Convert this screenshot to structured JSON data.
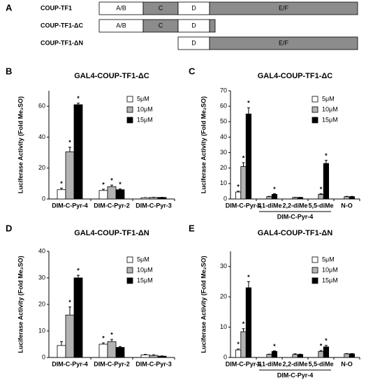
{
  "panel_a": {
    "panel": "A",
    "rows": [
      {
        "label": "COUP-TF1",
        "domains": [
          "A/B",
          "C",
          "D",
          "E/F"
        ]
      },
      {
        "label": "COUP-TF1-ΔC",
        "domains": [
          "A/B",
          "C",
          "D"
        ]
      },
      {
        "label": "COUP-TF1-ΔN",
        "domains": [
          "D",
          "E/F"
        ]
      }
    ]
  },
  "chart_data": [
    {
      "type": "bar",
      "panel": "B",
      "title": "GAL4-COUP-TF1-ΔC",
      "y_label": "Luciferase Activity (Fold Me₂SO)",
      "categories": [
        "DIM-C-Pyr-4",
        "DIM-C-Pyr-2",
        "DIM-C-Pyr-3"
      ],
      "star": "*",
      "series": [
        {
          "name": "5μM",
          "color": "#ffffff",
          "values": [
            6,
            5.5,
            0.8
          ],
          "errors": [
            1,
            0.8,
            0.1
          ],
          "marked": [
            true,
            true,
            false
          ]
        },
        {
          "name": "10μM",
          "color": "#b3b3b3",
          "values": [
            30.5,
            8,
            1
          ],
          "errors": [
            3,
            1,
            0.1
          ],
          "marked": [
            true,
            true,
            false
          ]
        },
        {
          "name": "15μM",
          "color": "#000000",
          "values": [
            61,
            6,
            1
          ],
          "errors": [
            1,
            0.5,
            0.1
          ],
          "marked": [
            true,
            true,
            false
          ]
        }
      ],
      "ylim": [
        0,
        70
      ],
      "yticks": [
        0,
        20,
        40,
        60
      ]
    },
    {
      "type": "bar",
      "panel": "C",
      "title": "GAL4-COUP-TF1-ΔC",
      "y_label": "Luciferase Activity (Fold Me₂SO)",
      "categories": [
        "DIM-C-Pyr-4",
        "1,1-diMe",
        "2,2-diMe",
        "5,5-diMe",
        "N-O"
      ],
      "group": {
        "label": "DIM-C-Pyr-4",
        "from": 1,
        "to": 3
      },
      "star": "*",
      "series": [
        {
          "name": "5μM",
          "color": "#ffffff",
          "values": [
            4.5,
            null,
            null,
            null,
            null
          ],
          "errors": [
            0.5,
            null,
            null,
            null,
            null
          ],
          "marked": [
            true,
            false,
            false,
            false,
            false
          ]
        },
        {
          "name": "10μM",
          "color": "#b3b3b3",
          "values": [
            21,
            1.5,
            1,
            3,
            1.5
          ],
          "errors": [
            2.5,
            0.2,
            0.1,
            0.4,
            0.2
          ],
          "marked": [
            true,
            false,
            false,
            true,
            false
          ]
        },
        {
          "name": "15μM",
          "color": "#000000",
          "values": [
            55,
            3,
            1,
            23,
            1.5
          ],
          "errors": [
            4,
            0.4,
            0.1,
            2,
            0.2
          ],
          "marked": [
            true,
            true,
            false,
            true,
            false
          ]
        }
      ],
      "ylim": [
        0,
        70
      ],
      "yticks": [
        0,
        10,
        20,
        30,
        40,
        50,
        60,
        70
      ]
    },
    {
      "type": "bar",
      "panel": "D",
      "title": "GAL4-COUP-TF1-ΔN",
      "y_label": "Luciferase Activity (Fold Me₂SO)",
      "categories": [
        "DIM-C-Pyr-4",
        "DIM-C-Pyr-2",
        "DIM-C-Pyr-3"
      ],
      "star": "*",
      "series": [
        {
          "name": "5μM",
          "color": "#ffffff",
          "values": [
            4.5,
            5,
            1
          ],
          "errors": [
            1.5,
            0.5,
            0.2
          ],
          "marked": [
            false,
            true,
            false
          ]
        },
        {
          "name": "10μM",
          "color": "#b3b3b3",
          "values": [
            16,
            6,
            0.8
          ],
          "errors": [
            3,
            0.8,
            0.2
          ],
          "marked": [
            true,
            true,
            false
          ]
        },
        {
          "name": "15μM",
          "color": "#000000",
          "values": [
            30,
            3.8,
            0.5
          ],
          "errors": [
            1,
            0.3,
            0.1
          ],
          "marked": [
            true,
            false,
            false
          ]
        }
      ],
      "ylim": [
        0,
        40
      ],
      "yticks": [
        0,
        10,
        20,
        30,
        40
      ]
    },
    {
      "type": "bar",
      "panel": "E",
      "title": "GAL4-COUP-TF1-ΔN",
      "y_label": "Luciferase Activity (Fold Me₂SO)",
      "categories": [
        "DIM-C-Pyr-4",
        "1,1-diMe",
        "2,2-diMe",
        "5,5-diMe",
        "N-O"
      ],
      "group": {
        "label": "DIM-C-Pyr-4",
        "from": 1,
        "to": 3
      },
      "star": "*",
      "series": [
        {
          "name": "5μM",
          "color": "#ffffff",
          "values": [
            2.5,
            null,
            null,
            null,
            null
          ],
          "errors": [
            0.3,
            null,
            null,
            null,
            null
          ],
          "marked": [
            true,
            false,
            false,
            false,
            false
          ]
        },
        {
          "name": "10μM",
          "color": "#b3b3b3",
          "values": [
            8.5,
            1,
            1,
            2,
            1.2
          ],
          "errors": [
            1,
            0.1,
            0.2,
            0.3,
            0.1
          ],
          "marked": [
            true,
            false,
            false,
            true,
            false
          ]
        },
        {
          "name": "15μM",
          "color": "#000000",
          "values": [
            23,
            2,
            1,
            3.5,
            1.2
          ],
          "errors": [
            2,
            0.2,
            0.1,
            0.5,
            0.1
          ],
          "marked": [
            true,
            true,
            false,
            true,
            false
          ]
        }
      ],
      "ylim": [
        0,
        35
      ],
      "yticks": [
        0,
        10,
        20,
        30
      ]
    }
  ]
}
